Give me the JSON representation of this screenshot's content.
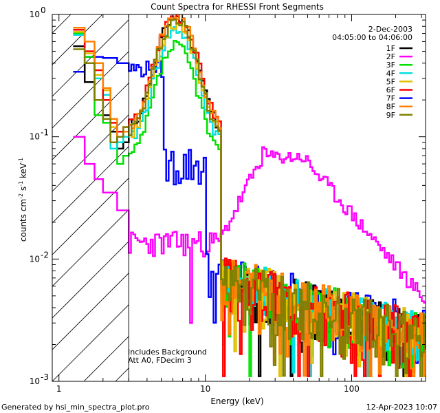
{
  "chart_data": {
    "type": "line",
    "title": "Count Spectra for RHESSI Front Segments",
    "xlabel": "Energy (keV)",
    "ylabel_html": "counts cm⁻² s⁻¹ keV⁻¹",
    "ylabel": {
      "base": "counts cm",
      "exp1": "-2",
      "s": " s",
      "exp2": "-1",
      "kev": " keV",
      "exp3": "-1"
    },
    "xscale": "log",
    "yscale": "log",
    "xlim": [
      0.9,
      320
    ],
    "ylim": [
      0.001,
      1.0
    ],
    "x_ticks": [
      {
        "value": 1,
        "label": "1"
      },
      {
        "value": 10,
        "label": "10"
      },
      {
        "value": 100,
        "label": "100"
      }
    ],
    "y_ticks": [
      {
        "value": 1,
        "base": "10",
        "exp": "0"
      },
      {
        "value": 0.1,
        "base": "10",
        "exp": "-1"
      },
      {
        "value": 0.01,
        "base": "10",
        "exp": "-2"
      },
      {
        "value": 0.001,
        "base": "10",
        "exp": "-3"
      }
    ],
    "hatched_region": {
      "x_from": 0.9,
      "x_to": 3.0
    },
    "legend_position": "top-right",
    "legend_header": [
      "2-Dec-2003",
      "04:05:00 to 04:06:00"
    ],
    "annotations": [
      "Includes Background",
      "Att A0, FDecim 3"
    ],
    "series": [
      {
        "name": "1F",
        "color": "#000000",
        "base": "std",
        "peak": 0.95,
        "offset": 0.0,
        "low": [
          0.55,
          0.28,
          0.2,
          0.15,
          0.11,
          0.08,
          0.09
        ],
        "seed": 11
      },
      {
        "name": "2F",
        "color": "#ff00ff",
        "base": "special2",
        "seed": 23
      },
      {
        "name": "3F",
        "color": "#00e000",
        "base": "std",
        "peak": 0.55,
        "offset": 0.05,
        "low": [
          0.7,
          0.45,
          0.15,
          0.13,
          0.09,
          0.06,
          0.07
        ],
        "seed": 37
      },
      {
        "name": "4F",
        "color": "#00e0e0",
        "base": "std",
        "peak": 0.75,
        "offset": 0.02,
        "low": [
          0.68,
          0.4,
          0.3,
          0.22,
          0.08,
          0.09,
          0.1
        ],
        "seed": 41
      },
      {
        "name": "5F",
        "color": "#e0c000",
        "base": "std",
        "peak": 0.85,
        "offset": 0.03,
        "low": [
          0.72,
          0.48,
          0.32,
          0.24,
          0.12,
          0.1,
          0.11
        ],
        "seed": 53
      },
      {
        "name": "6F",
        "color": "#ff0000",
        "base": "std",
        "peak": 1.0,
        "offset": 0.06,
        "low": [
          0.75,
          0.5,
          0.35,
          0.2,
          0.13,
          0.11,
          0.12
        ],
        "seed": 67
      },
      {
        "name": "7F",
        "color": "#0000ff",
        "base": "special7",
        "seed": 79
      },
      {
        "name": "8F",
        "color": "#ff8000",
        "base": "std",
        "peak": 0.98,
        "offset": 0.01,
        "low": [
          0.78,
          0.6,
          0.4,
          0.25,
          0.14,
          0.1,
          0.11
        ],
        "seed": 83
      },
      {
        "name": "9F",
        "color": "#808000",
        "base": "std",
        "peak": 0.9,
        "offset": 0.04,
        "low": [
          0.52,
          0.4,
          0.2,
          0.14,
          0.09,
          0.1,
          0.12
        ],
        "seed": 97
      }
    ]
  },
  "footer": {
    "left": "Generated by hsi_min_spectra_plot.pro",
    "right": "12-Apr-2023 10:07"
  }
}
